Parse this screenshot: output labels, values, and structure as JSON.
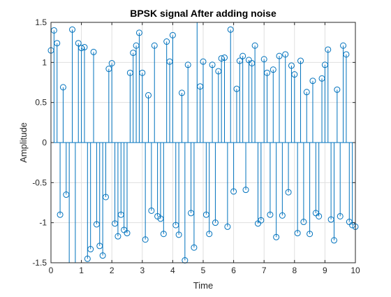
{
  "chart_data": {
    "type": "stem",
    "title": "BPSK signal After adding noise",
    "xlabel": "Time",
    "ylabel": "Amplitude",
    "xlim": [
      0,
      10
    ],
    "ylim": [
      -1.5,
      1.5
    ],
    "grid": true,
    "xticks": [
      "0",
      "1",
      "2",
      "3",
      "4",
      "5",
      "6",
      "7",
      "8",
      "9",
      "10"
    ],
    "yticks": [
      "1.5",
      "1",
      "0.5",
      "0",
      "-0.5",
      "-1",
      "-1.5"
    ],
    "series_color": "#0072bd",
    "x": [
      0.0,
      0.1,
      0.2,
      0.3,
      0.4,
      0.5,
      0.6,
      0.7,
      0.8,
      0.9,
      1.0,
      1.1,
      1.2,
      1.3,
      1.4,
      1.5,
      1.6,
      1.7,
      1.8,
      1.9,
      2.0,
      2.1,
      2.2,
      2.3,
      2.4,
      2.5,
      2.6,
      2.7,
      2.8,
      2.9,
      3.0,
      3.1,
      3.2,
      3.3,
      3.4,
      3.5,
      3.6,
      3.7,
      3.8,
      3.9,
      4.0,
      4.1,
      4.2,
      4.3,
      4.4,
      4.5,
      4.6,
      4.7,
      4.8,
      4.9,
      5.0,
      5.1,
      5.2,
      5.3,
      5.4,
      5.5,
      5.6,
      5.7,
      5.8,
      5.9,
      6.0,
      6.1,
      6.2,
      6.3,
      6.4,
      6.5,
      6.6,
      6.7,
      6.8,
      6.9,
      7.0,
      7.1,
      7.2,
      7.3,
      7.4,
      7.5,
      7.6,
      7.7,
      7.8,
      7.9,
      8.0,
      8.1,
      8.2,
      8.3,
      8.4,
      8.5,
      8.6,
      8.7,
      8.8,
      8.9,
      9.0,
      9.1,
      9.2,
      9.3,
      9.4,
      9.5,
      9.6,
      9.7,
      9.8,
      9.9,
      10.0
    ],
    "y": [
      1.15,
      1.4,
      1.24,
      -0.9,
      0.69,
      -0.65,
      -1.52,
      1.41,
      -1.55,
      1.24,
      1.18,
      1.19,
      -1.45,
      -1.33,
      1.13,
      -1.02,
      -1.29,
      -1.41,
      -0.68,
      0.92,
      0.99,
      -1.01,
      -1.17,
      -0.9,
      -1.09,
      -1.13,
      0.87,
      1.12,
      1.21,
      1.37,
      0.87,
      -1.21,
      0.59,
      -0.85,
      1.21,
      -0.92,
      -0.95,
      -1.14,
      1.26,
      1.01,
      1.34,
      -1.03,
      -1.15,
      0.62,
      -1.47,
      0.97,
      -0.88,
      -1.31,
      1.52,
      0.7,
      1.01,
      -0.9,
      -1.14,
      0.97,
      -1.0,
      0.89,
      1.05,
      1.06,
      -1.05,
      1.41,
      -0.61,
      0.67,
      1.02,
      1.08,
      -0.59,
      1.03,
      0.99,
      1.21,
      -1.01,
      -0.97,
      1.04,
      0.87,
      -0.9,
      0.91,
      -1.18,
      1.08,
      -0.91,
      1.1,
      -0.62,
      0.96,
      0.85,
      -1.13,
      1.02,
      -0.99,
      0.63,
      -1.14,
      0.77,
      -0.88,
      -0.92,
      0.8,
      0.97,
      1.16,
      -0.96,
      -1.22,
      0.66,
      -0.92,
      1.21,
      1.1,
      -0.99,
      -1.03,
      -1.05
    ]
  }
}
